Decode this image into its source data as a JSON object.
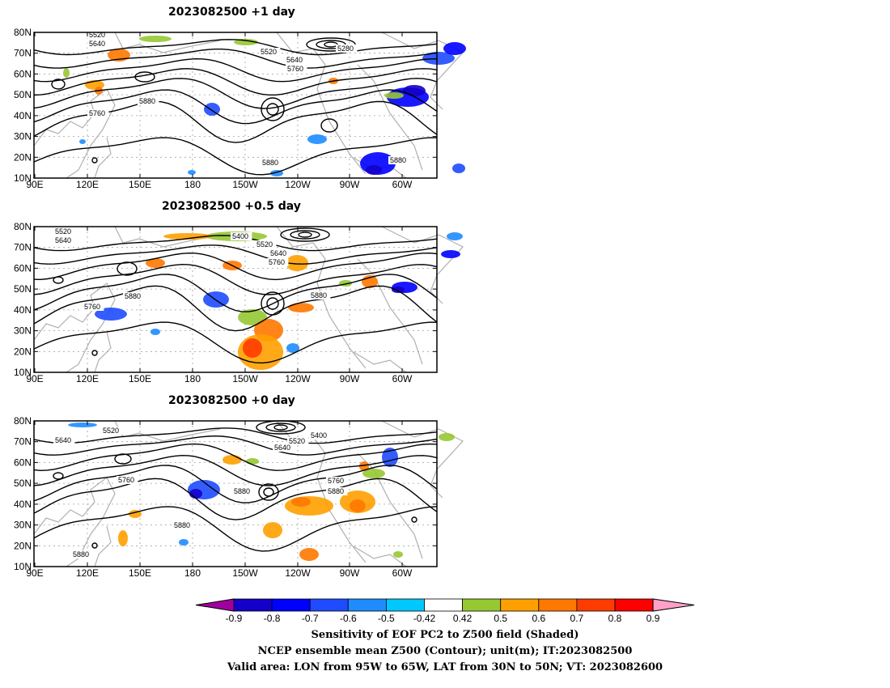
{
  "panels": [
    {
      "title": "2023082500  +1 day",
      "contour_labels": [
        "5520",
        "5640",
        "5520",
        "5640",
        "5760",
        "5280",
        "5880",
        "5760",
        "5880",
        "5880"
      ]
    },
    {
      "title": "2023082500  +0.5 day",
      "contour_labels": [
        "5520",
        "5640",
        "5400",
        "5520",
        "5640",
        "5760",
        "5880",
        "5760",
        "5880"
      ]
    },
    {
      "title": "2023082500  +0 day",
      "contour_labels": [
        "5520",
        "5640",
        "5400",
        "5520",
        "5640",
        "5760",
        "5880",
        "5880",
        "5760",
        "5880",
        "5880"
      ]
    }
  ],
  "axes": {
    "lat_labels": [
      "80N",
      "70N",
      "60N",
      "50N",
      "40N",
      "30N",
      "20N",
      "10N"
    ],
    "lon_labels": [
      "90E",
      "120E",
      "150E",
      "180",
      "150W",
      "120W",
      "90W",
      "60W"
    ]
  },
  "colorbar": {
    "labels": [
      "-0.9",
      "-0.8",
      "-0.7",
      "-0.6",
      "-0.5",
      "-0.42",
      "0.42",
      "0.5",
      "0.6",
      "0.7",
      "0.8",
      "0.9"
    ],
    "colors": [
      "#a000a0",
      "#1400c8",
      "#0000ff",
      "#1e4bff",
      "#1e8cff",
      "#00c8ff",
      "#ffffff",
      "#96c832",
      "#ffa000",
      "#ff7800",
      "#ff3c00",
      "#ff0000",
      "#ffa0c8"
    ]
  },
  "caption": {
    "line1": "Sensitivity of EOF PC2 to Z500 field (Shaded)",
    "line2": "NCEP ensemble mean Z500 (Contour); unit(m); IT:2023082500",
    "line3": "Valid area: LON from 95W to 65W, LAT from 30N to 50N; VT: 2023082600"
  }
}
